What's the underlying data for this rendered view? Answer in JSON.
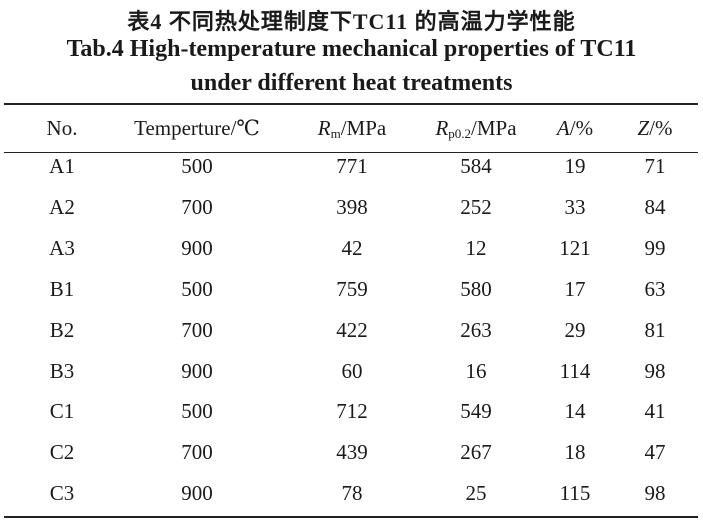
{
  "caption": {
    "cn": "表4 不同热处理制度下TC11 的高温力学性能",
    "en_line1": "Tab.4 High-temperature mechanical properties of TC11",
    "en_line2": "under different heat treatments"
  },
  "table": {
    "header": [
      {
        "text": "No."
      },
      {
        "text": "Temperture/℃"
      },
      {
        "symbol": "R",
        "sub": "m",
        "unit": "/MPa"
      },
      {
        "symbol": "R",
        "sub": "p0.2",
        "unit": "/MPa"
      },
      {
        "symbol": "A",
        "unit": "/%"
      },
      {
        "symbol": "Z",
        "unit": "/%"
      }
    ],
    "rows": [
      [
        "A1",
        500,
        771,
        584,
        19,
        71
      ],
      [
        "A2",
        700,
        398,
        252,
        33,
        84
      ],
      [
        "A3",
        900,
        42,
        12,
        121,
        99
      ],
      [
        "B1",
        500,
        759,
        580,
        17,
        63
      ],
      [
        "B2",
        700,
        422,
        263,
        29,
        81
      ],
      [
        "B3",
        900,
        60,
        16,
        114,
        98
      ],
      [
        "C1",
        500,
        712,
        549,
        14,
        41
      ],
      [
        "C2",
        700,
        439,
        267,
        18,
        47
      ],
      [
        "C3",
        900,
        78,
        25,
        115,
        98
      ]
    ]
  }
}
